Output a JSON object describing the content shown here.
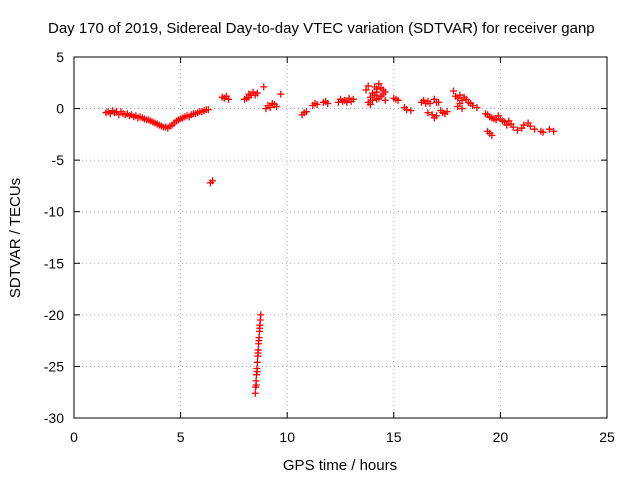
{
  "chart_data": {
    "type": "scatter",
    "title": "Day 170 of 2019, Sidereal Day-to-day VTEC variation (SDTVAR) for receiver ganp",
    "xlabel": "GPS time / hours",
    "ylabel": "SDTVAR / TECUs",
    "xlim": [
      0,
      25
    ],
    "ylim": [
      -30,
      5
    ],
    "xticks": [
      0,
      5,
      10,
      15,
      20,
      25
    ],
    "yticks": [
      -30,
      -25,
      -20,
      -15,
      -10,
      -5,
      0,
      5
    ],
    "grid": true,
    "marker": "+",
    "color": "#ff0000",
    "series": [
      {
        "name": "SDTVAR",
        "points": [
          [
            1.5,
            -0.4
          ],
          [
            1.6,
            -0.3
          ],
          [
            1.7,
            -0.5
          ],
          [
            1.8,
            -0.2
          ],
          [
            1.9,
            -0.4
          ],
          [
            2.0,
            -0.3
          ],
          [
            2.1,
            -0.6
          ],
          [
            2.2,
            -0.3
          ],
          [
            2.3,
            -0.5
          ],
          [
            2.4,
            -0.6
          ],
          [
            2.5,
            -0.5
          ],
          [
            2.6,
            -0.7
          ],
          [
            2.7,
            -0.6
          ],
          [
            2.8,
            -0.8
          ],
          [
            2.9,
            -0.7
          ],
          [
            3.0,
            -0.9
          ],
          [
            3.1,
            -0.8
          ],
          [
            3.2,
            -0.9
          ],
          [
            3.3,
            -1.0
          ],
          [
            3.4,
            -1.1
          ],
          [
            3.5,
            -1.1
          ],
          [
            3.6,
            -1.2
          ],
          [
            3.7,
            -1.3
          ],
          [
            3.8,
            -1.4
          ],
          [
            3.9,
            -1.5
          ],
          [
            4.0,
            -1.6
          ],
          [
            4.1,
            -1.7
          ],
          [
            4.2,
            -1.8
          ],
          [
            4.3,
            -1.8
          ],
          [
            4.4,
            -1.9
          ],
          [
            4.5,
            -1.7
          ],
          [
            4.6,
            -1.6
          ],
          [
            4.7,
            -1.4
          ],
          [
            4.8,
            -1.2
          ],
          [
            4.9,
            -1.1
          ],
          [
            5.0,
            -1.0
          ],
          [
            5.1,
            -0.9
          ],
          [
            5.2,
            -0.8
          ],
          [
            5.3,
            -0.7
          ],
          [
            5.4,
            -0.8
          ],
          [
            5.5,
            -0.6
          ],
          [
            5.6,
            -0.5
          ],
          [
            5.7,
            -0.5
          ],
          [
            5.8,
            -0.4
          ],
          [
            5.9,
            -0.3
          ],
          [
            6.0,
            -0.3
          ],
          [
            6.1,
            -0.2
          ],
          [
            6.2,
            -0.1
          ],
          [
            6.3,
            -0.1
          ],
          [
            6.4,
            -7.2
          ],
          [
            6.5,
            -7.0
          ],
          [
            6.95,
            1.1
          ],
          [
            7.05,
            1.0
          ],
          [
            7.15,
            1.2
          ],
          [
            7.25,
            0.9
          ],
          [
            8.0,
            0.9
          ],
          [
            8.1,
            1.0
          ],
          [
            8.2,
            1.1
          ],
          [
            8.3,
            1.3
          ],
          [
            8.4,
            1.6
          ],
          [
            8.5,
            1.3
          ],
          [
            8.6,
            1.5
          ],
          [
            8.2,
            1.4
          ],
          [
            8.9,
            2.1
          ],
          [
            9.0,
            0.0
          ],
          [
            9.1,
            0.3
          ],
          [
            9.2,
            0.1
          ],
          [
            9.3,
            0.5
          ],
          [
            9.4,
            0.4
          ],
          [
            9.5,
            0.2
          ],
          [
            9.7,
            1.4
          ],
          [
            10.7,
            -0.6
          ],
          [
            10.8,
            -0.4
          ],
          [
            10.9,
            -0.3
          ],
          [
            11.2,
            0.3
          ],
          [
            11.3,
            0.5
          ],
          [
            11.4,
            0.4
          ],
          [
            11.7,
            0.6
          ],
          [
            11.8,
            0.7
          ],
          [
            11.9,
            0.5
          ],
          [
            12.4,
            0.6
          ],
          [
            12.5,
            0.9
          ],
          [
            12.6,
            0.7
          ],
          [
            12.7,
            0.8
          ],
          [
            12.8,
            0.6
          ],
          [
            12.9,
            1.0
          ],
          [
            13.0,
            0.7
          ],
          [
            13.1,
            0.9
          ],
          [
            13.7,
            1.8
          ],
          [
            13.8,
            2.2
          ],
          [
            13.9,
            1.1
          ],
          [
            14.0,
            1.5
          ],
          [
            14.1,
            2.1
          ],
          [
            14.2,
            0.9
          ],
          [
            14.3,
            2.4
          ],
          [
            14.4,
            1.2
          ],
          [
            14.5,
            1.8
          ],
          [
            14.6,
            0.8
          ],
          [
            13.9,
            0.4
          ],
          [
            14.0,
            0.8
          ],
          [
            14.1,
            1.3
          ],
          [
            14.2,
            1.9
          ],
          [
            14.3,
            1.0
          ],
          [
            14.4,
            2.0
          ],
          [
            14.5,
            1.4
          ],
          [
            14.6,
            1.6
          ],
          [
            13.8,
            0.6
          ],
          [
            14.2,
            1.6
          ],
          [
            15.0,
            1.0
          ],
          [
            15.1,
            0.9
          ],
          [
            15.2,
            0.8
          ],
          [
            15.5,
            0.1
          ],
          [
            15.6,
            -0.1
          ],
          [
            15.8,
            -0.2
          ],
          [
            16.3,
            0.6
          ],
          [
            16.4,
            0.8
          ],
          [
            16.5,
            0.5
          ],
          [
            16.6,
            0.7
          ],
          [
            16.7,
            0.5
          ],
          [
            16.9,
            0.9
          ],
          [
            17.0,
            0.6
          ],
          [
            17.1,
            0.6
          ],
          [
            16.6,
            -0.4
          ],
          [
            16.8,
            -0.6
          ],
          [
            16.9,
            -0.9
          ],
          [
            17.0,
            -0.7
          ],
          [
            17.2,
            -0.2
          ],
          [
            17.3,
            -0.4
          ],
          [
            17.4,
            -0.5
          ],
          [
            17.5,
            -0.3
          ],
          [
            17.8,
            1.7
          ],
          [
            17.9,
            1.2
          ],
          [
            18.0,
            1.0
          ],
          [
            18.1,
            1.3
          ],
          [
            18.2,
            0.8
          ],
          [
            18.3,
            1.1
          ],
          [
            18.4,
            0.9
          ],
          [
            18.5,
            0.6
          ],
          [
            18.6,
            0.5
          ],
          [
            18.7,
            0.3
          ],
          [
            18.0,
            0.2
          ],
          [
            18.1,
            0.5
          ],
          [
            18.2,
            0.0
          ],
          [
            18.9,
            0.1
          ],
          [
            19.3,
            -0.5
          ],
          [
            19.4,
            -0.6
          ],
          [
            19.5,
            -0.8
          ],
          [
            19.6,
            -0.9
          ],
          [
            19.7,
            -1.0
          ],
          [
            19.8,
            -1.1
          ],
          [
            19.9,
            -0.7
          ],
          [
            20.0,
            -1.0
          ],
          [
            20.1,
            -1.2
          ],
          [
            19.4,
            -2.2
          ],
          [
            19.5,
            -2.4
          ],
          [
            19.6,
            -2.6
          ],
          [
            20.2,
            -1.3
          ],
          [
            20.3,
            -1.6
          ],
          [
            20.4,
            -1.2
          ],
          [
            20.5,
            -1.5
          ],
          [
            20.6,
            -1.8
          ],
          [
            20.8,
            -2.1
          ],
          [
            21.0,
            -1.9
          ],
          [
            21.1,
            -1.6
          ],
          [
            21.3,
            -1.4
          ],
          [
            21.4,
            -1.7
          ],
          [
            21.6,
            -2.0
          ],
          [
            21.9,
            -2.2
          ],
          [
            22.0,
            -2.3
          ],
          [
            22.3,
            -2.0
          ],
          [
            22.5,
            -2.2
          ],
          [
            8.5,
            -27.6
          ],
          [
            8.52,
            -27.0
          ],
          [
            8.54,
            -26.4
          ],
          [
            8.56,
            -25.8
          ],
          [
            8.58,
            -25.2
          ],
          [
            8.6,
            -24.6
          ],
          [
            8.62,
            -24.0
          ],
          [
            8.64,
            -23.4
          ],
          [
            8.66,
            -22.8
          ],
          [
            8.68,
            -22.2
          ],
          [
            8.7,
            -21.6
          ],
          [
            8.72,
            -21.0
          ],
          [
            8.74,
            -20.5
          ],
          [
            8.76,
            -20.0
          ],
          [
            8.55,
            -26.8
          ],
          [
            8.59,
            -25.5
          ],
          [
            8.63,
            -23.7
          ],
          [
            8.67,
            -22.5
          ],
          [
            8.71,
            -21.3
          ]
        ]
      }
    ]
  }
}
